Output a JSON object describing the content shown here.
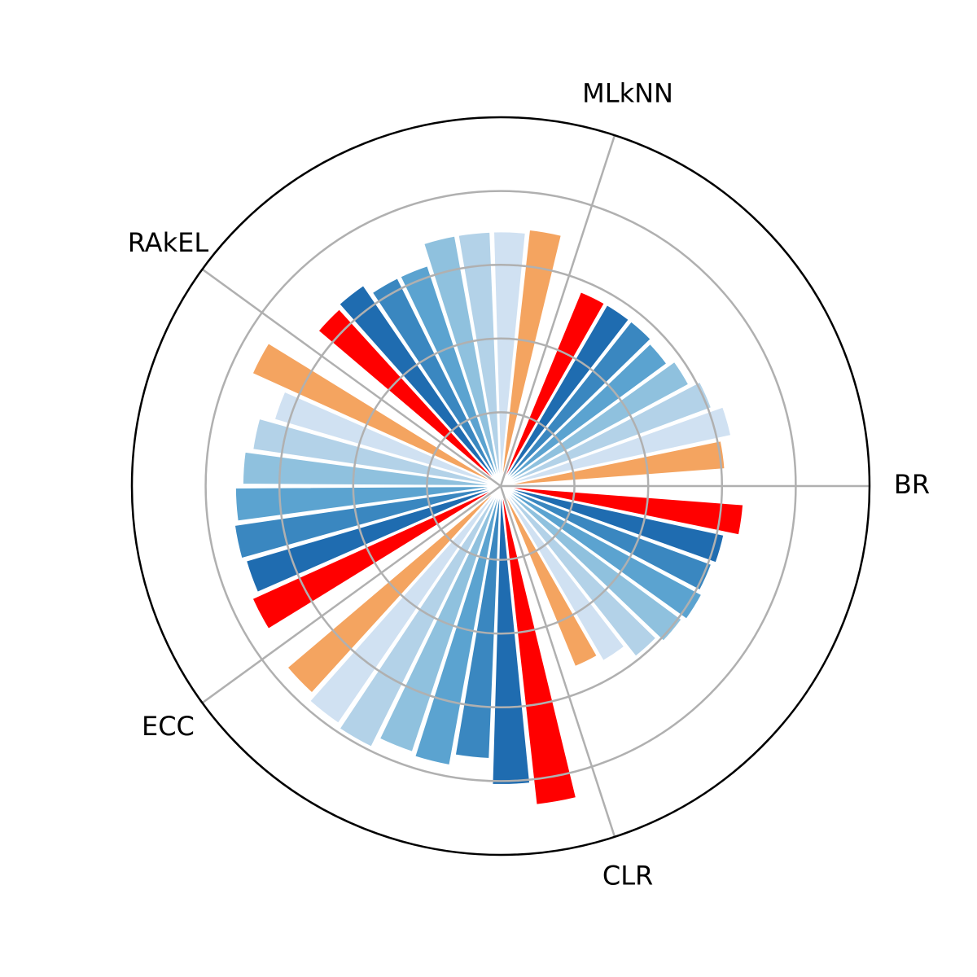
{
  "chart_data": {
    "type": "bar",
    "polar": true,
    "rlim": [
      0,
      5
    ],
    "rticks": [
      1,
      2,
      3,
      4
    ],
    "grid": true,
    "categories": [
      "BR",
      "CLR",
      "ECC",
      "RAkEL",
      "MLkNN"
    ],
    "series": [
      {
        "color": "#f4a460",
        "values": [
          3.05,
          2.65,
          3.8,
          3.7,
          3.5
        ]
      },
      {
        "color": "#d0e1f2",
        "values": [
          3.2,
          2.75,
          3.9,
          3.2,
          3.45
        ]
      },
      {
        "color": "#b3d2e8",
        "values": [
          3.05,
          2.95,
          3.95,
          3.4,
          3.45
        ]
      },
      {
        "color": "#8fc1de",
        "values": [
          2.9,
          3.05,
          3.8,
          3.5,
          3.45
        ]
      },
      {
        "color": "#5ba3d0",
        "values": [
          2.8,
          3.1,
          3.85,
          3.6,
          3.15
        ]
      },
      {
        "color": "#3a87c0",
        "values": [
          2.85,
          3.05,
          3.7,
          3.65,
          3.15
        ]
      },
      {
        "color": "#1f6cb0",
        "values": [
          2.85,
          3.1,
          4.05,
          3.6,
          3.3
        ]
      },
      {
        "color": "#ff0000",
        "values": [
          2.85,
          3.3,
          4.35,
          3.7,
          3.25
        ]
      }
    ]
  }
}
